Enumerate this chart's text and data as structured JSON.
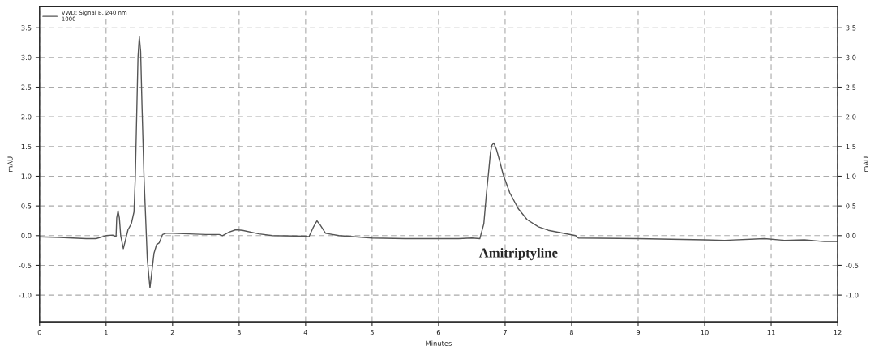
{
  "chart_data": {
    "type": "line",
    "xlabel": "Minutes",
    "ylabel": "mAU",
    "y2label": "mAU",
    "xlim": [
      0,
      12
    ],
    "xticks": [
      0,
      1,
      2,
      3,
      4,
      5,
      6,
      7,
      8,
      9,
      10,
      11,
      12
    ],
    "ylim": [
      -1.45,
      3.85
    ],
    "yticks": [
      {
        "value": -1,
        "label": "-1.0"
      },
      -0.5,
      {
        "value": 0,
        "label": "0.0"
      },
      0.5,
      {
        "value": 1,
        "label": "1.0"
      },
      1.5,
      {
        "value": 2,
        "label": "2.0"
      },
      2.5,
      {
        "value": 3,
        "label": "3.0"
      },
      3.5
    ],
    "y2lim": [
      -1.45,
      3.85
    ],
    "y2ticks": [
      {
        "value": -1,
        "label": "-1.0"
      },
      -0.5,
      {
        "value": 0,
        "label": "0.0"
      },
      0.5,
      {
        "value": 1,
        "label": "1.0"
      },
      1.5,
      {
        "value": 2,
        "label": "2.0"
      },
      2.5,
      {
        "value": 3,
        "label": "3.0"
      },
      3.5
    ],
    "grid": true,
    "legend": "top left",
    "marker": "none",
    "line_style": "solid",
    "annotations": [
      "Amitriptyline"
    ],
    "series": [
      {
        "name": "VWD: Signal B, 240 nm\n1000",
        "color": "#555555",
        "x": [
          0,
          0.3,
          0.7,
          0.85,
          1.0,
          1.1,
          1.15,
          1.16,
          1.18,
          1.2,
          1.22,
          1.26,
          1.33,
          1.38,
          1.42,
          1.44,
          1.46,
          1.48,
          1.5,
          1.52,
          1.54,
          1.57,
          1.62,
          1.66,
          1.72,
          1.76,
          1.8,
          1.85,
          1.9,
          2.0,
          2.5,
          2.7,
          2.75,
          2.85,
          2.95,
          3.05,
          3.3,
          3.5,
          4.0,
          4.05,
          4.12,
          4.17,
          4.22,
          4.3,
          4.5,
          5.0,
          5.5,
          6.0,
          6.3,
          6.5,
          6.62,
          6.68,
          6.72,
          6.75,
          6.78,
          6.8,
          6.83,
          6.87,
          6.92,
          6.97,
          7.07,
          7.2,
          7.33,
          7.5,
          7.65,
          8.06,
          8.1,
          9.0,
          10.0,
          10.3,
          10.9,
          11.2,
          11.5,
          11.8,
          12.0
        ],
        "values": [
          -0.02,
          -0.03,
          -0.05,
          -0.05,
          0.0,
          0.01,
          -0.02,
          0.3,
          0.42,
          0.3,
          0.0,
          -0.22,
          0.1,
          0.2,
          0.4,
          1.0,
          2.0,
          3.0,
          3.35,
          3.1,
          2.2,
          1.0,
          -0.4,
          -0.88,
          -0.3,
          -0.15,
          -0.12,
          0.02,
          0.04,
          0.04,
          0.02,
          0.02,
          0.0,
          0.06,
          0.1,
          0.09,
          0.03,
          0.0,
          -0.01,
          -0.02,
          0.15,
          0.25,
          0.18,
          0.04,
          0.0,
          -0.04,
          -0.05,
          -0.05,
          -0.05,
          -0.04,
          -0.05,
          0.2,
          0.72,
          1.05,
          1.4,
          1.52,
          1.56,
          1.45,
          1.25,
          1.03,
          0.72,
          0.45,
          0.27,
          0.15,
          0.09,
          0.0,
          -0.04,
          -0.05,
          -0.07,
          -0.08,
          -0.05,
          -0.08,
          -0.07,
          -0.1,
          -0.1
        ]
      }
    ]
  }
}
